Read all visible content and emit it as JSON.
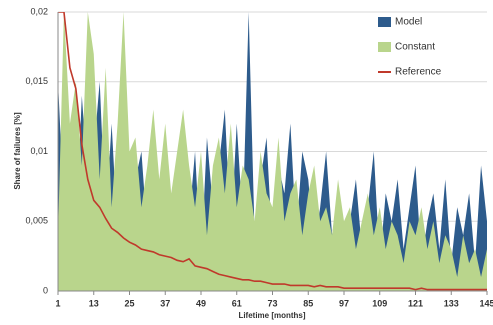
{
  "chart_data": {
    "type": "area-line",
    "x_label": "Lifetime [months]",
    "y_label": "Share of failures [%]",
    "xlim": [
      1,
      145
    ],
    "ylim": [
      0,
      0.02
    ],
    "xticks": [
      1,
      13,
      25,
      37,
      49,
      61,
      73,
      85,
      97,
      109,
      121,
      133,
      145
    ],
    "yticks": [
      0,
      {
        "value": 0.005,
        "label": "0,005"
      },
      {
        "value": 0.01,
        "label": "0,01"
      },
      {
        "value": 0.015,
        "label": "0,015"
      },
      {
        "value": 0.02,
        "label": "0,02"
      }
    ],
    "grid": true,
    "legend": "upper right",
    "x": [
      1,
      3,
      5,
      7,
      9,
      11,
      13,
      15,
      17,
      19,
      21,
      23,
      25,
      27,
      29,
      31,
      33,
      35,
      37,
      39,
      41,
      43,
      45,
      47,
      49,
      51,
      53,
      55,
      57,
      59,
      61,
      63,
      65,
      67,
      69,
      71,
      73,
      75,
      77,
      79,
      81,
      83,
      85,
      87,
      89,
      91,
      93,
      95,
      97,
      99,
      101,
      103,
      105,
      107,
      109,
      111,
      113,
      115,
      117,
      119,
      121,
      123,
      125,
      127,
      129,
      131,
      133,
      135,
      137,
      139,
      141,
      143,
      145
    ],
    "series": [
      {
        "name": "Model",
        "color": "#2d5b8c",
        "kind": "area",
        "values": [
          0.015,
          0.006,
          0.012,
          0.004,
          0.014,
          0.008,
          0.01,
          0.015,
          0.005,
          0.012,
          0.004,
          0.01,
          0.003,
          0.008,
          0.01,
          0.004,
          0.011,
          0.006,
          0.009,
          0.003,
          0.008,
          0.012,
          0.005,
          0.01,
          0.002,
          0.011,
          0.006,
          0.009,
          0.013,
          0.004,
          0.012,
          0.005,
          0.02,
          0.004,
          0.008,
          0.011,
          0.003,
          0.009,
          0.007,
          0.012,
          0.004,
          0.01,
          0.008,
          0.003,
          0.006,
          0.01,
          0.004,
          0.007,
          0.002,
          0.005,
          0.008,
          0.003,
          0.006,
          0.01,
          0.002,
          0.007,
          0.005,
          0.008,
          0.003,
          0.006,
          0.009,
          0.002,
          0.005,
          0.007,
          0.003,
          0.008,
          0.002,
          0.006,
          0.004,
          0.007,
          0.002,
          0.009,
          0.005
        ]
      },
      {
        "name": "Constant",
        "color": "#b9d58c",
        "kind": "area",
        "values": [
          0.004,
          0.02,
          0.012,
          0.015,
          0.009,
          0.02,
          0.017,
          0.008,
          0.016,
          0.006,
          0.012,
          0.02,
          0.01,
          0.011,
          0.006,
          0.009,
          0.013,
          0.008,
          0.012,
          0.007,
          0.01,
          0.013,
          0.009,
          0.006,
          0.01,
          0.004,
          0.009,
          0.011,
          0.007,
          0.012,
          0.006,
          0.009,
          0.008,
          0.005,
          0.01,
          0.007,
          0.006,
          0.011,
          0.005,
          0.007,
          0.008,
          0.004,
          0.007,
          0.009,
          0.005,
          0.006,
          0.004,
          0.008,
          0.005,
          0.006,
          0.003,
          0.005,
          0.007,
          0.004,
          0.006,
          0.003,
          0.005,
          0.004,
          0.002,
          0.005,
          0.004,
          0.006,
          0.003,
          0.005,
          0.002,
          0.004,
          0.003,
          0.001,
          0.004,
          0.002,
          0.003,
          0.001,
          0.003
        ]
      },
      {
        "name": "Reference",
        "color": "#c0392b",
        "kind": "line",
        "values": [
          0.02,
          0.02,
          0.016,
          0.0145,
          0.0105,
          0.008,
          0.0065,
          0.006,
          0.0052,
          0.0045,
          0.0042,
          0.0038,
          0.0035,
          0.0033,
          0.003,
          0.0029,
          0.0028,
          0.0026,
          0.0025,
          0.0024,
          0.0022,
          0.0021,
          0.0023,
          0.0018,
          0.0017,
          0.0016,
          0.0014,
          0.0012,
          0.0011,
          0.001,
          0.0009,
          0.0008,
          0.0008,
          0.0007,
          0.0007,
          0.0006,
          0.0005,
          0.0005,
          0.0005,
          0.0004,
          0.0004,
          0.0004,
          0.0004,
          0.0003,
          0.0004,
          0.0003,
          0.0003,
          0.0003,
          0.0002,
          0.0002,
          0.0002,
          0.0002,
          0.0002,
          0.0002,
          0.0002,
          0.0002,
          0.0002,
          0.0002,
          0.0002,
          0.0002,
          0.0001,
          0.0002,
          0.0001,
          0.0001,
          0.0001,
          0.0001,
          0.0001,
          0.0001,
          0.0001,
          0.0001,
          0.0001,
          0.0001,
          0.0001
        ]
      }
    ]
  }
}
